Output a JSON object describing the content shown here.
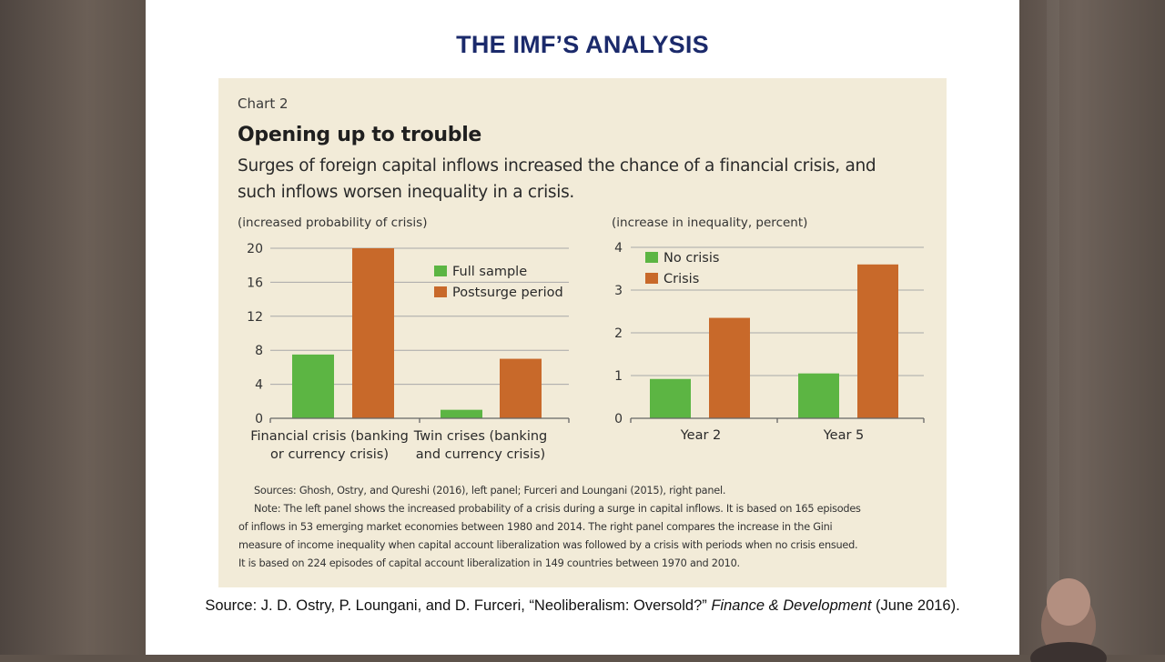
{
  "slide": {
    "title": "THE IMF’S ANALYSIS",
    "source_prefix": "Source: J. D. Ostry, P. Loungani, and D. Furceri, “Neoliberalism: Oversold?” ",
    "source_journal": "Finance & Development",
    "source_suffix": " (June 2016)."
  },
  "figure": {
    "kicker": "Chart 2",
    "title": "Opening up to trouble",
    "subtitle_line1": "Surges of foreign capital inflows increased the chance of a financial crisis, and",
    "subtitle_line2": "such inflows worsen inequality in a crisis.",
    "notes": [
      "Sources: Ghosh, Ostry, and Qureshi (2016), left panel; Furceri and Loungani (2015), right panel.",
      "Note: The left panel shows the increased probability of a crisis during a surge in capital inflows. It is based on 165 episodes",
      "of inflows in 53 emerging market economies between 1980 and 2014. The right panel compares the increase in the Gini",
      "measure of income inequality when capital account liberalization was followed by a crisis with periods when no crisis ensued.",
      "It is based on 224 episodes of capital account liberalization in 149 countries between 1970 and 2010."
    ]
  },
  "colors": {
    "green": "#5cb543",
    "orange": "#c8692a",
    "panel_bg": "#f2ebd8",
    "title_blue": "#1b2a6b"
  },
  "chart_data": [
    {
      "type": "bar",
      "title": "",
      "ylabel": "(increased probability of crisis)",
      "ylim": [
        0,
        20
      ],
      "yticks": [
        "0",
        "4",
        "8",
        "12",
        "16",
        "20"
      ],
      "categories": [
        [
          "Financial crisis (banking",
          "or currency crisis)"
        ],
        [
          "Twin crises (banking",
          "and currency crisis)"
        ]
      ],
      "series": [
        {
          "name": "Full sample",
          "color": "#5cb543",
          "values": [
            7.5,
            1.0
          ]
        },
        {
          "name": "Postsurge period",
          "color": "#c8692a",
          "values": [
            20.0,
            7.0
          ]
        }
      ],
      "grid": true,
      "legend": "top-right"
    },
    {
      "type": "bar",
      "title": "",
      "ylabel": "(increase in inequality, percent)",
      "ylim": [
        0,
        4
      ],
      "yticks": [
        "0",
        "1",
        "2",
        "3",
        "4"
      ],
      "categories": [
        [
          "Year 2"
        ],
        [
          "Year 5"
        ]
      ],
      "series": [
        {
          "name": "No crisis",
          "color": "#5cb543",
          "values": [
            0.92,
            1.05
          ]
        },
        {
          "name": "Crisis",
          "color": "#c8692a",
          "values": [
            2.35,
            3.6
          ]
        }
      ],
      "grid": true,
      "legend": "top-left"
    }
  ]
}
